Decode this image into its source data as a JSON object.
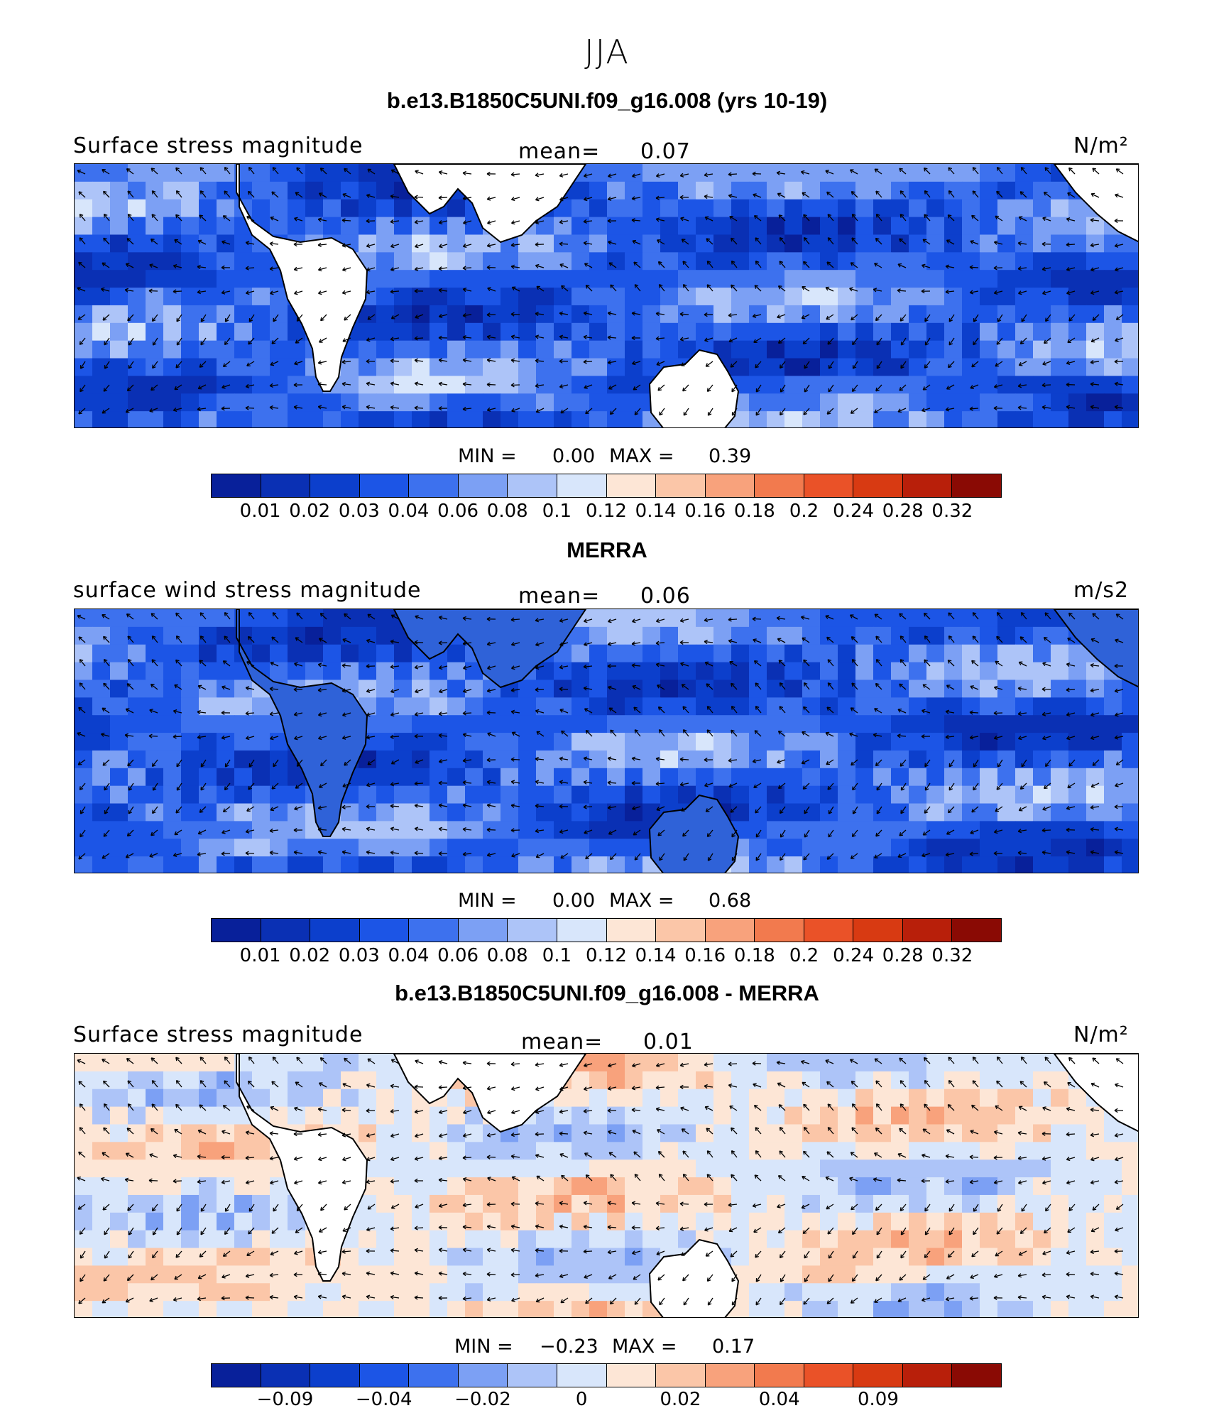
{
  "season": "JJA",
  "colors": {
    "seq": [
      "#08209a",
      "#0a30b4",
      "#0c3fcc",
      "#1c55e6",
      "#3d71ee",
      "#7ca0f4",
      "#adc4f8",
      "#d8e6fb",
      "#fde6d6",
      "#fbc6a8",
      "#f8a27c",
      "#f27a4e",
      "#ea5228",
      "#d83a12",
      "#b81f0a",
      "#8a0a04"
    ],
    "land": "#ffffff"
  },
  "panels": [
    {
      "title": "b.e13.B1850C5UNI.f09_g16.008 (yrs 10-19)",
      "left_label": "Surface stress magnitude",
      "mean_label": "mean=",
      "mean_value": "0.07",
      "units": "N/m²",
      "min_label": "MIN =",
      "min_value": "0.00",
      "max_label": "MAX =",
      "max_value": "0.39",
      "ticks": [
        "0.01",
        "0.02",
        "0.03",
        "0.04",
        "0.06",
        "0.08",
        "0.1",
        "0.12",
        "0.14",
        "0.16",
        "0.18",
        "0.2",
        "0.24",
        "0.28",
        "0.32"
      ],
      "land_filled": false
    },
    {
      "title": "MERRA",
      "left_label": "surface wind stress magnitude",
      "mean_label": "mean=",
      "mean_value": "0.06",
      "units": "m/s2",
      "min_label": "MIN =",
      "min_value": "0.00",
      "max_label": "MAX =",
      "max_value": "0.68",
      "ticks": [
        "0.01",
        "0.02",
        "0.03",
        "0.04",
        "0.06",
        "0.08",
        "0.1",
        "0.12",
        "0.14",
        "0.16",
        "0.18",
        "0.2",
        "0.24",
        "0.28",
        "0.32"
      ],
      "land_filled": true
    },
    {
      "title": "b.e13.B1850C5UNI.f09_g16.008 - MERRA",
      "left_label": "Surface stress magnitude",
      "mean_label": "mean=",
      "mean_value": "0.01",
      "units": "N/m²",
      "min_label": "MIN =",
      "min_value": "−0.23",
      "max_label": "MAX =",
      "max_value": "0.17",
      "ticks": [
        "−0.09",
        "",
        "−0.04",
        "",
        "−0.02",
        "",
        "0",
        "",
        "0.02",
        "",
        "0.04",
        "",
        "0.09"
      ],
      "land_filled": false,
      "diverging": true
    }
  ]
}
